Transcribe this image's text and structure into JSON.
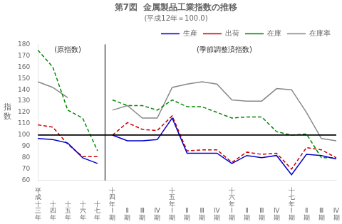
{
  "chart_data": {
    "type": "line",
    "title": "第7図  金属製品工業指数の推移",
    "subtitle": "(平成12年＝100.0)",
    "ylabel": "指数",
    "categories": [
      "平成十三年",
      "十四年",
      "十五年",
      "十六年",
      "十七年",
      "十四年Ⅰ期",
      "Ⅱ期",
      "Ⅲ期",
      "Ⅳ期",
      "十五年Ⅰ期",
      "Ⅱ期",
      "Ⅲ期",
      "Ⅳ期",
      "十六年Ⅰ期",
      "Ⅱ期",
      "Ⅲ期",
      "Ⅳ期",
      "十七年Ⅰ期",
      "Ⅱ期",
      "Ⅲ期",
      "Ⅳ期"
    ],
    "series": [
      {
        "name": "生産",
        "color": "#0000cc",
        "line_style": "solid",
        "values": [
          97,
          96,
          93,
          80,
          75,
          null,
          null,
          null,
          null,
          null,
          null,
          null,
          null,
          null,
          null,
          null,
          null,
          null,
          null,
          null,
          null
        ]
      },
      {
        "name": "出荷",
        "color": "#cc0000",
        "line_style": "dashed",
        "values": [
          109,
          107,
          92,
          81,
          81,
          null,
          null,
          null,
          null,
          null,
          null,
          null,
          null,
          null,
          null,
          null,
          null,
          null,
          null,
          null,
          null
        ]
      },
      {
        "name": "在庫",
        "color": "#008800",
        "line_style": "dashed",
        "values": [
          175,
          160,
          122,
          115,
          86,
          null,
          null,
          null,
          null,
          null,
          null,
          null,
          null,
          null,
          null,
          null,
          null,
          null,
          null,
          null,
          null
        ]
      },
      {
        "name": "在庫率",
        "color": "#888888",
        "line_style": "solid",
        "values": [
          147,
          142,
          133,
          null,
          null,
          null,
          null,
          null,
          null,
          null,
          null,
          null,
          null,
          null,
          null,
          null,
          null,
          null,
          null,
          null,
          null
        ]
      },
      {
        "name": "生産",
        "color": "#0000cc",
        "line_style": "solid",
        "values": [
          null,
          null,
          null,
          null,
          null,
          100,
          95,
          95,
          96,
          115,
          84,
          84,
          84,
          75,
          82,
          80,
          82,
          65,
          83,
          82,
          79
        ]
      },
      {
        "name": "出荷",
        "color": "#cc0000",
        "line_style": "dashed",
        "values": [
          null,
          null,
          null,
          null,
          null,
          100,
          111,
          105,
          104,
          117,
          86,
          87,
          87,
          76,
          85,
          83,
          84,
          70,
          89,
          87,
          80
        ]
      },
      {
        "name": "在庫",
        "color": "#008800",
        "line_style": "dashed",
        "values": [
          null,
          null,
          null,
          null,
          null,
          131,
          126,
          126,
          122,
          131,
          125,
          125,
          120,
          115,
          116,
          116,
          103,
          100,
          101,
          80,
          80
        ]
      },
      {
        "name": "在庫率",
        "color": "#888888",
        "line_style": "solid",
        "values": [
          null,
          null,
          null,
          null,
          null,
          122,
          126,
          115,
          115,
          142,
          145,
          147,
          145,
          131,
          130,
          130,
          141,
          140,
          120,
          97,
          95
        ]
      }
    ],
    "ylim": [
      60,
      180
    ],
    "yticks": [
      60,
      70,
      80,
      90,
      100,
      110,
      120,
      130,
      140,
      150,
      160,
      170,
      180
    ],
    "hline": 100,
    "annotations": [
      "(原指数)",
      "(季節調整済指数)"
    ],
    "grid": false,
    "legend": "upper right"
  }
}
